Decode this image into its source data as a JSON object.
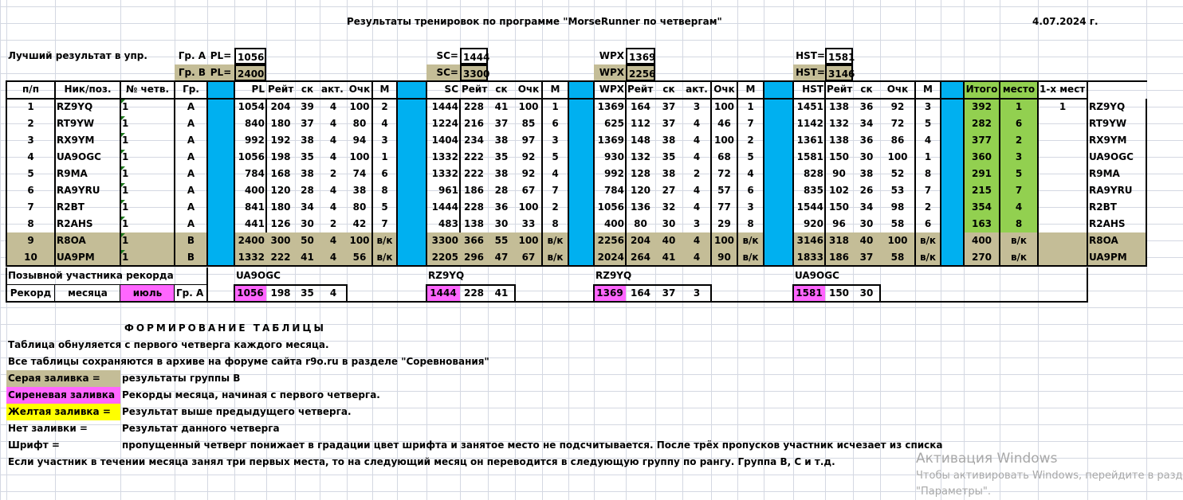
{
  "title": "Результаты тренировок по программе \"MorseRunner по четвергам\"",
  "date": "4.07.2024 г.",
  "best": {
    "label": "Лучший результат  в упр.",
    "group_a_label": "Гр. А",
    "group_b_label": "Гр. В",
    "pl_label": "PL=",
    "sc_label": "SC=",
    "wpx_label": "WPX",
    "hst_label": "HST=",
    "group_a": {
      "pl": "1056",
      "sc": "1444",
      "wpx": "1369",
      "hst": "1581"
    },
    "group_b": {
      "pl": "2400",
      "sc": "3300",
      "wpx": "2256",
      "hst": "3146"
    }
  },
  "headers": {
    "num": "п/п",
    "nick": "Ник/поз.",
    "thursday": "№ четв.",
    "group": "Гр.",
    "pl": "PL",
    "sc": "SC",
    "wpx": "WPX",
    "hst": "HST",
    "rating": "Рейт",
    "speed": "ск",
    "activity": "акт.",
    "points": "Очк",
    "place_m": "М",
    "total": "Итого",
    "place": "место",
    "first_places": "1-х мест"
  },
  "rows": [
    {
      "n": "1",
      "nick": "RZ9YQ",
      "thu": "1",
      "grp": "A",
      "pl": [
        "1054",
        "204",
        "39",
        "4",
        "100",
        "2"
      ],
      "sc": [
        "1444",
        "228",
        "41",
        "100",
        "1"
      ],
      "wpx": [
        "1369",
        "164",
        "37",
        "3",
        "100",
        "1"
      ],
      "hst": [
        "1451",
        "138",
        "36",
        "92",
        "3"
      ],
      "total": "392",
      "place": "1",
      "firsts": "1",
      "call": "RZ9YQ",
      "groupB": false
    },
    {
      "n": "2",
      "nick": "RT9YW",
      "thu": "1",
      "grp": "A",
      "pl": [
        "840",
        "180",
        "37",
        "4",
        "80",
        "4"
      ],
      "sc": [
        "1224",
        "216",
        "37",
        "85",
        "6"
      ],
      "wpx": [
        "625",
        "112",
        "37",
        "4",
        "46",
        "7"
      ],
      "hst": [
        "1142",
        "132",
        "34",
        "72",
        "5"
      ],
      "total": "282",
      "place": "6",
      "firsts": "",
      "call": "RT9YW",
      "groupB": false
    },
    {
      "n": "3",
      "nick": "RX9YM",
      "thu": "1",
      "grp": "A",
      "pl": [
        "992",
        "192",
        "38",
        "4",
        "94",
        "3"
      ],
      "sc": [
        "1404",
        "234",
        "38",
        "97",
        "3"
      ],
      "wpx": [
        "1369",
        "148",
        "38",
        "4",
        "100",
        "2"
      ],
      "hst": [
        "1361",
        "138",
        "36",
        "86",
        "4"
      ],
      "total": "377",
      "place": "2",
      "firsts": "",
      "call": "RX9YM",
      "groupB": false
    },
    {
      "n": "4",
      "nick": "UA9OGC",
      "thu": "1",
      "grp": "A",
      "pl": [
        "1056",
        "198",
        "35",
        "4",
        "100",
        "1"
      ],
      "sc": [
        "1332",
        "222",
        "35",
        "92",
        "5"
      ],
      "wpx": [
        "930",
        "132",
        "35",
        "4",
        "68",
        "5"
      ],
      "hst": [
        "1581",
        "150",
        "30",
        "100",
        "1"
      ],
      "total": "360",
      "place": "3",
      "firsts": "",
      "call": "UA9OGC",
      "groupB": false
    },
    {
      "n": "5",
      "nick": "R9MA",
      "thu": "1",
      "grp": "A",
      "pl": [
        "784",
        "168",
        "38",
        "2",
        "74",
        "6"
      ],
      "sc": [
        "1332",
        "222",
        "38",
        "92",
        "4"
      ],
      "wpx": [
        "992",
        "128",
        "38",
        "2",
        "72",
        "4"
      ],
      "hst": [
        "828",
        "90",
        "38",
        "52",
        "8"
      ],
      "total": "291",
      "place": "5",
      "firsts": "",
      "call": "R9MA",
      "groupB": false
    },
    {
      "n": "6",
      "nick": "RA9YRU",
      "thu": "1",
      "grp": "A",
      "pl": [
        "400",
        "120",
        "28",
        "4",
        "38",
        "8"
      ],
      "sc": [
        "961",
        "186",
        "28",
        "67",
        "7"
      ],
      "wpx": [
        "784",
        "120",
        "27",
        "4",
        "57",
        "6"
      ],
      "hst": [
        "835",
        "102",
        "26",
        "53",
        "7"
      ],
      "total": "215",
      "place": "7",
      "firsts": "",
      "call": "RA9YRU",
      "groupB": false
    },
    {
      "n": "7",
      "nick": "R2BT",
      "thu": "1",
      "grp": "A",
      "pl": [
        "841",
        "180",
        "34",
        "4",
        "80",
        "5"
      ],
      "sc": [
        "1444",
        "228",
        "36",
        "100",
        "2"
      ],
      "wpx": [
        "1056",
        "136",
        "32",
        "4",
        "77",
        "3"
      ],
      "hst": [
        "1544",
        "150",
        "34",
        "98",
        "2"
      ],
      "total": "354",
      "place": "4",
      "firsts": "",
      "call": "R2BT",
      "groupB": false
    },
    {
      "n": "8",
      "nick": "R2AHS",
      "thu": "1",
      "grp": "A",
      "pl": [
        "441",
        "126",
        "30",
        "2",
        "42",
        "7"
      ],
      "sc": [
        "483",
        "138",
        "30",
        "33",
        "8"
      ],
      "wpx": [
        "400",
        "80",
        "30",
        "3",
        "29",
        "8"
      ],
      "hst": [
        "920",
        "96",
        "30",
        "58",
        "6"
      ],
      "total": "163",
      "place": "8",
      "firsts": "",
      "call": "R2AHS",
      "groupB": false
    },
    {
      "n": "9",
      "nick": "R8OA",
      "thu": "1",
      "grp": "B",
      "pl": [
        "2400",
        "300",
        "50",
        "4",
        "100",
        "в/к"
      ],
      "sc": [
        "3300",
        "366",
        "55",
        "100",
        "в/к"
      ],
      "wpx": [
        "2256",
        "204",
        "40",
        "4",
        "100",
        "в/к"
      ],
      "hst": [
        "3146",
        "318",
        "40",
        "100",
        "в/к"
      ],
      "total": "400",
      "place": "в/к",
      "firsts": "",
      "call": "R8OA",
      "groupB": true
    },
    {
      "n": "10",
      "nick": "UA9PM",
      "thu": "1",
      "grp": "B",
      "pl": [
        "1332",
        "222",
        "41",
        "4",
        "56",
        "в/к"
      ],
      "sc": [
        "2205",
        "296",
        "47",
        "67",
        "в/к"
      ],
      "wpx": [
        "2024",
        "264",
        "41",
        "4",
        "90",
        "в/к"
      ],
      "hst": [
        "1833",
        "186",
        "37",
        "58",
        "в/к"
      ],
      "total": "270",
      "place": "в/к",
      "firsts": "",
      "call": "UA9PM",
      "groupB": true
    }
  ],
  "record": {
    "holder_label": "Позывной участника  рекорда",
    "record_label": "Рекорд",
    "month_label": "месяца",
    "month": "июль",
    "group": "Гр. А",
    "pl": {
      "call": "UA9OGC",
      "values": [
        "1056",
        "198",
        "35",
        "4"
      ]
    },
    "sc": {
      "call": "RZ9YQ",
      "values": [
        "1444",
        "228",
        "41"
      ]
    },
    "wpx": {
      "call": "RZ9YQ",
      "values": [
        "1369",
        "164",
        "37",
        "3"
      ]
    },
    "hst": {
      "call": "UA9OGC",
      "values": [
        "1581",
        "150",
        "30"
      ]
    }
  },
  "notes": {
    "heading": "ФОРМИРОВАНИЕ  ТАБЛИЦЫ",
    "line1": "Таблица обнуляется с первого четверга каждого месяца.",
    "line2": "Все таблицы сохраняются в архиве на форуме сайта r9o.ru  в разделе \"Соревнования\"",
    "legend": [
      {
        "key": "Серая заливка   =",
        "value": "результаты группы В",
        "color": "#c4bd97"
      },
      {
        "key": "Сиреневая заливка",
        "value": "Рекорды месяца, начиная с первого четверга.",
        "color": "#ff66ff"
      },
      {
        "key": "Желтая заливка  =",
        "value": "Результат выше предыдущего четверга.",
        "color": "#ffff00"
      },
      {
        "key": "Нет заливки  =",
        "value": "Результат данного четверга",
        "color": ""
      },
      {
        "key": " Шрифт         =",
        "value": "пропущенный четверг понижает в градации цвет шрифта и занятое место не подсчитывается. После трёх пропусков участник исчезает из списка",
        "color": ""
      }
    ],
    "line_last": "Если участник в течении месяца занял три первых места, то на следующий месяц он переводится в следующую группу по рангу. Группа В, С и т.д."
  },
  "watermark": {
    "title": "Активация Windows",
    "line1": "Чтобы активировать Windows, перейдите в разд",
    "line2": "\"Параметры\"."
  },
  "colors": {
    "group_b_fill": "#c4bd97",
    "separator_blue": "#00b0f0",
    "total_green": "#92d050",
    "record_pink": "#ff66ff",
    "legend_yellow": "#ffff00"
  }
}
